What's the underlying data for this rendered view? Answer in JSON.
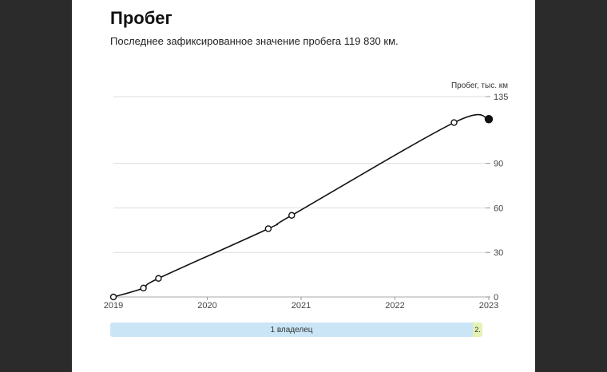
{
  "header": {
    "title": "Пробег",
    "subtitle": "Последнее зафиксированное значение пробега 119 830 км."
  },
  "owners": [
    {
      "label": "1 владелец"
    },
    {
      "label": "2."
    }
  ],
  "colors": {
    "line": "#111111",
    "grid": "#dddddd",
    "owner1": "#c9e5f6",
    "owner2": "#e3f3b4"
  },
  "chart_data": {
    "type": "line",
    "title": "",
    "xlabel": "",
    "ylabel": "Пробег, тыс. км",
    "xlim": [
      2019.0,
      2023.0
    ],
    "ylim": [
      0,
      135
    ],
    "yticks": [
      "0",
      "30",
      "60",
      "90",
      "135"
    ],
    "xticks": [
      "2019",
      "2020",
      "2021",
      "2022",
      "2023"
    ],
    "grid": true,
    "series": [
      {
        "points": [
          {
            "x": 2019.0,
            "y": 0
          },
          {
            "x": 2019.32,
            "y": 6
          },
          {
            "x": 2019.48,
            "y": 12.5
          },
          {
            "x": 2020.65,
            "y": 46
          },
          {
            "x": 2020.9,
            "y": 55
          },
          {
            "x": 2022.63,
            "y": 117.5
          },
          {
            "x": 2023.0,
            "y": 119.8
          }
        ],
        "last_point_filled": true
      }
    ]
  }
}
